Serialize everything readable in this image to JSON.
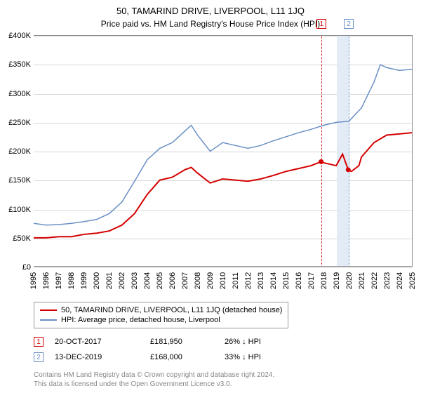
{
  "title": "50, TAMARIND DRIVE, LIVERPOOL, L11 1JQ",
  "subtitle": "Price paid vs. HM Land Registry's House Price Index (HPI)",
  "chart": {
    "type": "line",
    "background_color": "#ffffff",
    "grid_color": "#d8d8d8",
    "axis_color": "#888888",
    "y_axis": {
      "min": 0,
      "max": 400000,
      "step": 50000,
      "prefix": "£",
      "format_k": true,
      "labels": [
        "£0",
        "£50K",
        "£100K",
        "£150K",
        "£200K",
        "£250K",
        "£300K",
        "£350K",
        "£400K"
      ]
    },
    "x_axis": {
      "min": 1995,
      "max": 2025,
      "labels": [
        "1995",
        "1996",
        "1997",
        "1998",
        "1999",
        "2000",
        "2001",
        "2002",
        "2003",
        "2004",
        "2005",
        "2006",
        "2007",
        "2008",
        "2009",
        "2010",
        "2011",
        "2012",
        "2013",
        "2014",
        "2015",
        "2016",
        "2017",
        "2018",
        "2019",
        "2020",
        "2021",
        "2022",
        "2023",
        "2024",
        "2025"
      ]
    },
    "series": [
      {
        "name": "50, TAMARIND DRIVE, LIVERPOOL, L11 1JQ (detached house)",
        "color": "#d40000",
        "line_width": 2,
        "points": [
          [
            1995,
            50000
          ],
          [
            1996,
            50000
          ],
          [
            1997,
            52000
          ],
          [
            1998,
            52000
          ],
          [
            1999,
            56000
          ],
          [
            2000,
            58000
          ],
          [
            2001,
            62000
          ],
          [
            2002,
            72000
          ],
          [
            2003,
            92000
          ],
          [
            2004,
            125000
          ],
          [
            2005,
            150000
          ],
          [
            2006,
            155000
          ],
          [
            2007,
            168000
          ],
          [
            2007.5,
            172000
          ],
          [
            2008,
            162000
          ],
          [
            2009,
            145000
          ],
          [
            2010,
            152000
          ],
          [
            2011,
            150000
          ],
          [
            2012,
            148000
          ],
          [
            2013,
            152000
          ],
          [
            2014,
            158000
          ],
          [
            2015,
            165000
          ],
          [
            2016,
            170000
          ],
          [
            2017,
            175000
          ],
          [
            2017.8,
            181950
          ],
          [
            2018,
            180000
          ],
          [
            2019,
            175000
          ],
          [
            2019.5,
            195000
          ],
          [
            2019.95,
            168000
          ],
          [
            2020.2,
            165000
          ],
          [
            2020.8,
            175000
          ],
          [
            2021,
            190000
          ],
          [
            2022,
            215000
          ],
          [
            2023,
            228000
          ],
          [
            2024,
            230000
          ],
          [
            2025,
            232000
          ]
        ]
      },
      {
        "name": "HPI: Average price, detached house, Liverpool",
        "color": "#6a8fc5",
        "line_width": 1.5,
        "points": [
          [
            1995,
            75000
          ],
          [
            1996,
            72000
          ],
          [
            1997,
            73000
          ],
          [
            1998,
            75000
          ],
          [
            1999,
            78000
          ],
          [
            2000,
            82000
          ],
          [
            2001,
            92000
          ],
          [
            2002,
            112000
          ],
          [
            2003,
            148000
          ],
          [
            2004,
            185000
          ],
          [
            2005,
            205000
          ],
          [
            2006,
            215000
          ],
          [
            2007,
            235000
          ],
          [
            2007.5,
            245000
          ],
          [
            2008,
            228000
          ],
          [
            2009,
            200000
          ],
          [
            2010,
            215000
          ],
          [
            2011,
            210000
          ],
          [
            2012,
            205000
          ],
          [
            2013,
            210000
          ],
          [
            2014,
            218000
          ],
          [
            2015,
            225000
          ],
          [
            2016,
            232000
          ],
          [
            2017,
            238000
          ],
          [
            2018,
            245000
          ],
          [
            2019,
            250000
          ],
          [
            2020,
            252000
          ],
          [
            2021,
            275000
          ],
          [
            2022,
            320000
          ],
          [
            2022.5,
            350000
          ],
          [
            2023,
            345000
          ],
          [
            2024,
            340000
          ],
          [
            2025,
            342000
          ]
        ]
      }
    ],
    "markers": [
      {
        "n": "1",
        "x": 2017.8,
        "color": "#d40000"
      },
      {
        "n": "2",
        "x": 2019.95,
        "color": "#6a8fc5"
      }
    ],
    "band": {
      "x_start": 2019.0,
      "x_end": 2020.0,
      "color": "#e3ebf6"
    }
  },
  "legend": {
    "items": [
      {
        "label": "50, TAMARIND DRIVE, LIVERPOOL, L11 1JQ (detached house)",
        "color": "#d40000"
      },
      {
        "label": "HPI: Average price, detached house, Liverpool",
        "color": "#6a8fc5"
      }
    ]
  },
  "records": [
    {
      "n": "1",
      "color": "#d40000",
      "date": "20-OCT-2017",
      "price": "£181,950",
      "diff": "26% ↓ HPI"
    },
    {
      "n": "2",
      "color": "#6a8fc5",
      "date": "13-DEC-2019",
      "price": "£168,000",
      "diff": "33% ↓ HPI"
    }
  ],
  "footnote_line1": "Contains HM Land Registry data © Crown copyright and database right 2024.",
  "footnote_line2": "This data is licensed under the Open Government Licence v3.0."
}
